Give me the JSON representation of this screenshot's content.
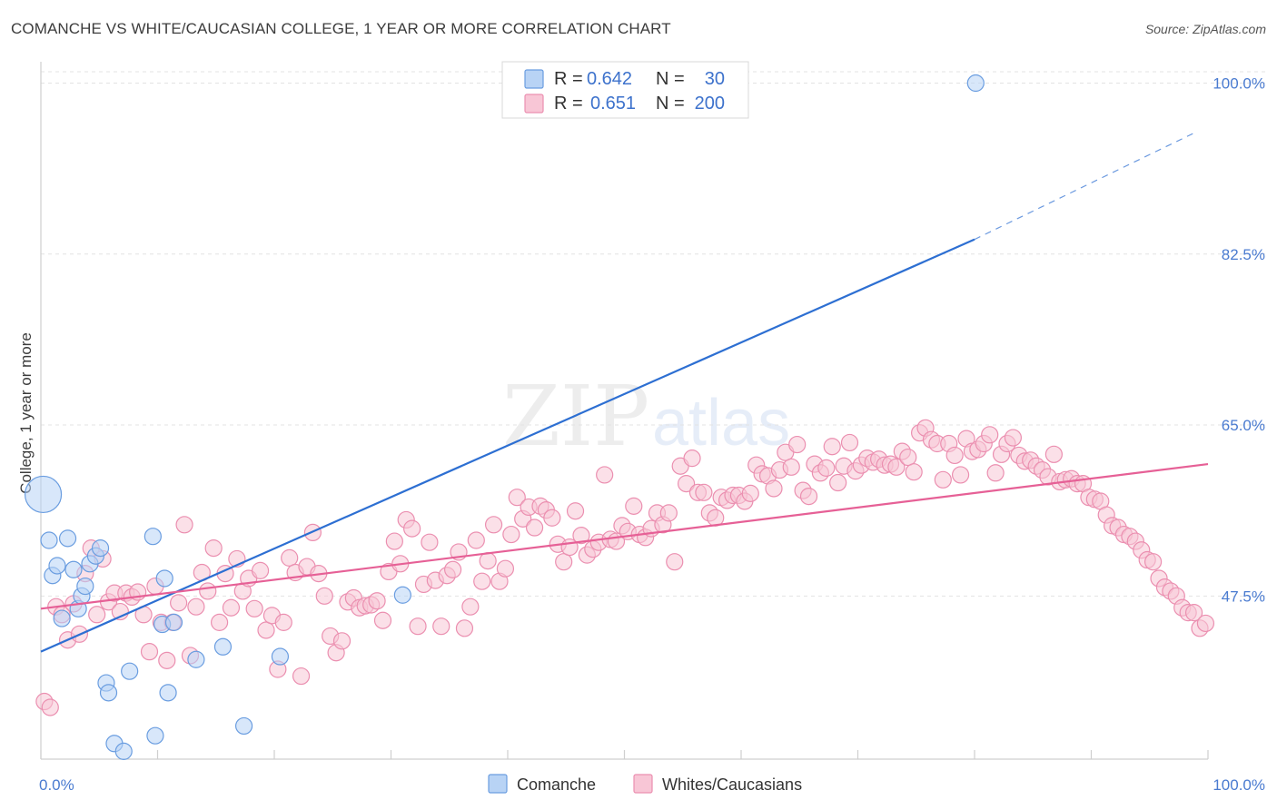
{
  "header": {
    "title": "COMANCHE VS WHITE/CAUCASIAN COLLEGE, 1 YEAR OR MORE CORRELATION CHART",
    "source": "Source: ZipAtlas.com"
  },
  "watermark": {
    "zip": "ZIP",
    "atlas": "atlas"
  },
  "colors": {
    "comanche_fill": "#b8d3f5",
    "comanche_stroke": "#6a9de0",
    "comanche_line": "#2d6fd2",
    "white_fill": "#f8c6d6",
    "white_stroke": "#eb8fb0",
    "white_line": "#e66096",
    "tick_blue": "#4a7bd0"
  },
  "legend": {
    "rows": [
      {
        "r_label": "R =",
        "r_value": "0.642",
        "n_label": "N =",
        "n_value": "30"
      },
      {
        "r_label": "R =",
        "r_value": "0.651",
        "n_label": "N =",
        "n_value": "200"
      }
    ]
  },
  "bottom_legend": {
    "series_a": "Comanche",
    "series_b": "Whites/Caucasians"
  },
  "chart_data": {
    "type": "scatter",
    "title": "COMANCHE VS WHITE/CAUCASIAN COLLEGE, 1 YEAR OR MORE CORRELATION CHART",
    "xlabel": "",
    "ylabel": "College, 1 year or more",
    "xlim": [
      0,
      100
    ],
    "ylim": [
      30.8,
      102
    ],
    "x_tick_labels": [
      "0.0%",
      "100.0%"
    ],
    "y_ticks": [
      47.5,
      65.0,
      82.5,
      100.0
    ],
    "y_tick_labels": [
      "47.5%",
      "65.0%",
      "82.5%",
      "100.0%"
    ],
    "series": [
      {
        "name": "Comanche",
        "R": 0.642,
        "N": 30,
        "trend": {
          "x0": 0,
          "y0": 41.8,
          "x1": 80,
          "y1": 84.0,
          "dash_to_x": 99,
          "dash_to_y": 95.0
        },
        "points": [
          [
            0.2,
            57.9,
            "big"
          ],
          [
            0.7,
            53.2
          ],
          [
            1.0,
            49.6
          ],
          [
            1.4,
            50.6
          ],
          [
            1.8,
            45.2
          ],
          [
            2.3,
            53.4
          ],
          [
            2.8,
            50.2
          ],
          [
            3.2,
            46.2
          ],
          [
            3.5,
            47.5
          ],
          [
            3.8,
            48.5
          ],
          [
            4.2,
            50.8
          ],
          [
            4.7,
            51.6
          ],
          [
            5.1,
            52.4
          ],
          [
            5.6,
            38.6
          ],
          [
            5.8,
            37.6
          ],
          [
            6.3,
            32.4
          ],
          [
            7.1,
            31.6
          ],
          [
            7.6,
            39.8
          ],
          [
            9.8,
            33.2
          ],
          [
            9.6,
            53.6
          ],
          [
            10.4,
            44.6
          ],
          [
            10.6,
            49.3
          ],
          [
            10.9,
            37.6
          ],
          [
            11.4,
            44.8
          ],
          [
            13.3,
            41.0
          ],
          [
            15.6,
            42.3
          ],
          [
            17.4,
            34.2
          ],
          [
            20.5,
            41.3
          ],
          [
            31.0,
            47.6
          ],
          [
            80.1,
            100.0
          ]
        ]
      },
      {
        "name": "Whites/Caucasians",
        "R": 0.651,
        "N": 200,
        "trend": {
          "x0": 0,
          "y0": 46.2,
          "x1": 100,
          "y1": 61.0
        },
        "points": [
          [
            0.3,
            36.7
          ],
          [
            0.8,
            36.1
          ],
          [
            1.3,
            46.4
          ],
          [
            1.8,
            45.6
          ],
          [
            2.3,
            43.0
          ],
          [
            2.8,
            46.7
          ],
          [
            3.3,
            43.6
          ],
          [
            3.8,
            49.8
          ],
          [
            4.3,
            52.4
          ],
          [
            4.8,
            45.6
          ],
          [
            5.3,
            51.3
          ],
          [
            5.8,
            46.9
          ],
          [
            6.3,
            47.8
          ],
          [
            6.8,
            45.9
          ],
          [
            7.3,
            47.8
          ],
          [
            7.8,
            47.4
          ],
          [
            8.3,
            47.9
          ],
          [
            8.8,
            45.6
          ],
          [
            9.3,
            41.8
          ],
          [
            9.8,
            48.5
          ],
          [
            10.3,
            44.8
          ],
          [
            10.8,
            40.9
          ],
          [
            11.3,
            44.8
          ],
          [
            11.8,
            46.8
          ],
          [
            12.3,
            54.8
          ],
          [
            12.8,
            41.4
          ],
          [
            13.3,
            46.4
          ],
          [
            13.8,
            49.9
          ],
          [
            14.3,
            48.0
          ],
          [
            14.8,
            52.4
          ],
          [
            15.3,
            44.8
          ],
          [
            15.8,
            49.8
          ],
          [
            16.3,
            46.3
          ],
          [
            16.8,
            51.3
          ],
          [
            17.3,
            48.0
          ],
          [
            17.8,
            49.3
          ],
          [
            18.3,
            46.2
          ],
          [
            18.8,
            50.1
          ],
          [
            19.3,
            44.0
          ],
          [
            19.8,
            45.5
          ],
          [
            20.3,
            40.0
          ],
          [
            20.8,
            44.8
          ],
          [
            21.3,
            51.4
          ],
          [
            21.8,
            49.9
          ],
          [
            22.3,
            39.3
          ],
          [
            22.8,
            50.5
          ],
          [
            23.3,
            54.0
          ],
          [
            23.8,
            49.8
          ],
          [
            24.3,
            47.5
          ],
          [
            24.8,
            43.4
          ],
          [
            25.3,
            41.7
          ],
          [
            25.8,
            42.9
          ],
          [
            26.3,
            46.9
          ],
          [
            26.8,
            47.3
          ],
          [
            27.3,
            46.3
          ],
          [
            27.8,
            46.5
          ],
          [
            28.3,
            46.6
          ],
          [
            28.8,
            47.0
          ],
          [
            29.3,
            45.0
          ],
          [
            29.8,
            50.0
          ],
          [
            30.3,
            53.1
          ],
          [
            30.8,
            50.8
          ],
          [
            31.3,
            55.3
          ],
          [
            31.8,
            54.4
          ],
          [
            32.3,
            44.4
          ],
          [
            32.8,
            48.7
          ],
          [
            33.3,
            53.0
          ],
          [
            33.8,
            49.1
          ],
          [
            34.3,
            44.4
          ],
          [
            34.8,
            49.6
          ],
          [
            35.3,
            50.2
          ],
          [
            35.8,
            52.0
          ],
          [
            36.3,
            44.2
          ],
          [
            36.8,
            46.4
          ],
          [
            37.3,
            53.2
          ],
          [
            37.8,
            49.0
          ],
          [
            38.3,
            51.1
          ],
          [
            38.8,
            54.8
          ],
          [
            39.3,
            49.0
          ],
          [
            39.8,
            50.3
          ],
          [
            40.3,
            53.8
          ],
          [
            40.8,
            57.6
          ],
          [
            41.3,
            55.4
          ],
          [
            41.8,
            56.6
          ],
          [
            42.3,
            54.5
          ],
          [
            42.8,
            56.7
          ],
          [
            43.3,
            56.3
          ],
          [
            43.8,
            55.5
          ],
          [
            44.3,
            52.8
          ],
          [
            44.8,
            51.0
          ],
          [
            45.3,
            52.5
          ],
          [
            45.8,
            56.2
          ],
          [
            46.3,
            53.7
          ],
          [
            46.8,
            51.7
          ],
          [
            47.3,
            52.3
          ],
          [
            47.8,
            53.0
          ],
          [
            48.3,
            59.9
          ],
          [
            48.8,
            53.3
          ],
          [
            49.3,
            53.1
          ],
          [
            49.8,
            54.7
          ],
          [
            50.3,
            54.1
          ],
          [
            50.8,
            56.7
          ],
          [
            51.3,
            53.8
          ],
          [
            51.8,
            53.5
          ],
          [
            52.3,
            54.4
          ],
          [
            52.8,
            56.0
          ],
          [
            53.3,
            54.8
          ],
          [
            53.8,
            56.0
          ],
          [
            54.3,
            51.0
          ],
          [
            54.8,
            60.8
          ],
          [
            55.3,
            59.0
          ],
          [
            55.8,
            61.6
          ],
          [
            56.3,
            58.1
          ],
          [
            56.8,
            58.1
          ],
          [
            57.3,
            56.0
          ],
          [
            57.8,
            55.5
          ],
          [
            58.3,
            57.6
          ],
          [
            58.8,
            57.3
          ],
          [
            59.3,
            57.8
          ],
          [
            59.8,
            57.8
          ],
          [
            60.3,
            57.2
          ],
          [
            60.8,
            58.0
          ],
          [
            61.3,
            60.9
          ],
          [
            61.8,
            60.0
          ],
          [
            62.3,
            59.8
          ],
          [
            62.8,
            58.5
          ],
          [
            63.3,
            60.4
          ],
          [
            63.8,
            62.2
          ],
          [
            64.3,
            60.7
          ],
          [
            64.8,
            63.0
          ],
          [
            65.3,
            58.3
          ],
          [
            65.8,
            57.7
          ],
          [
            66.3,
            61.0
          ],
          [
            66.8,
            60.1
          ],
          [
            67.3,
            60.6
          ],
          [
            67.8,
            62.8
          ],
          [
            68.3,
            59.1
          ],
          [
            68.8,
            60.8
          ],
          [
            69.3,
            63.2
          ],
          [
            69.8,
            60.3
          ],
          [
            70.3,
            60.9
          ],
          [
            70.8,
            61.6
          ],
          [
            71.3,
            61.2
          ],
          [
            71.8,
            61.5
          ],
          [
            72.3,
            60.9
          ],
          [
            72.8,
            61.0
          ],
          [
            73.3,
            60.7
          ],
          [
            73.8,
            62.3
          ],
          [
            74.3,
            61.7
          ],
          [
            74.8,
            60.2
          ],
          [
            75.3,
            64.2
          ],
          [
            75.8,
            64.7
          ],
          [
            76.3,
            63.5
          ],
          [
            76.8,
            63.1
          ],
          [
            77.3,
            59.4
          ],
          [
            77.8,
            63.1
          ],
          [
            78.3,
            61.9
          ],
          [
            78.8,
            59.9
          ],
          [
            79.3,
            63.6
          ],
          [
            79.8,
            62.3
          ],
          [
            80.3,
            62.5
          ],
          [
            80.8,
            63.1
          ],
          [
            81.3,
            64.0
          ],
          [
            81.8,
            60.1
          ],
          [
            82.3,
            62.0
          ],
          [
            82.8,
            63.1
          ],
          [
            83.3,
            63.7
          ],
          [
            83.8,
            61.9
          ],
          [
            84.3,
            61.3
          ],
          [
            84.8,
            61.4
          ],
          [
            85.3,
            60.8
          ],
          [
            85.8,
            60.4
          ],
          [
            86.3,
            59.7
          ],
          [
            86.8,
            62.0
          ],
          [
            87.3,
            59.2
          ],
          [
            87.8,
            59.4
          ],
          [
            88.3,
            59.5
          ],
          [
            88.8,
            59.0
          ],
          [
            89.3,
            59.0
          ],
          [
            89.8,
            57.6
          ],
          [
            90.3,
            57.4
          ],
          [
            90.8,
            57.2
          ],
          [
            91.3,
            55.8
          ],
          [
            91.8,
            54.7
          ],
          [
            92.3,
            54.5
          ],
          [
            92.8,
            53.8
          ],
          [
            93.3,
            53.6
          ],
          [
            93.8,
            53.1
          ],
          [
            94.3,
            52.2
          ],
          [
            94.8,
            51.2
          ],
          [
            95.3,
            51.0
          ],
          [
            95.8,
            49.3
          ],
          [
            96.3,
            48.4
          ],
          [
            96.8,
            48.0
          ],
          [
            97.3,
            47.5
          ],
          [
            97.8,
            46.3
          ],
          [
            98.3,
            45.8
          ],
          [
            98.8,
            45.8
          ],
          [
            99.3,
            44.2
          ],
          [
            99.8,
            44.7
          ]
        ]
      }
    ]
  }
}
